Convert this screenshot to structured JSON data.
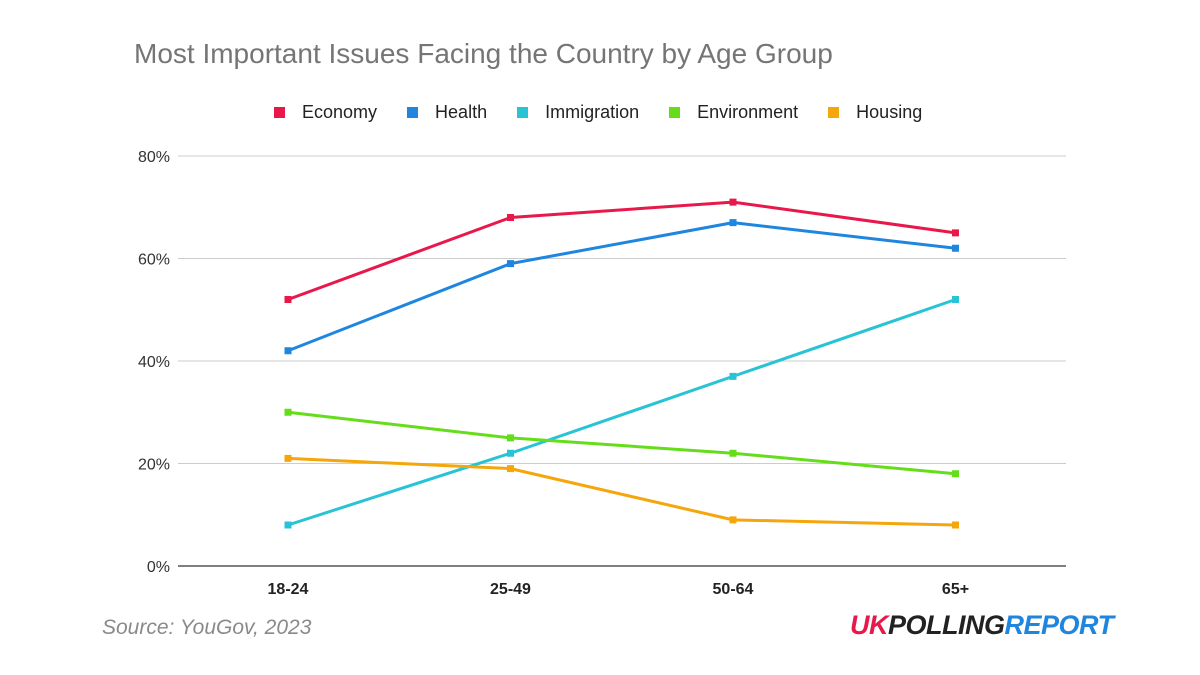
{
  "chart_data": {
    "type": "line",
    "title": "Most Important Issues Facing the Country by Age Group",
    "categories": [
      "18-24",
      "25-49",
      "50-64",
      "65+"
    ],
    "ylim": [
      0,
      80
    ],
    "yticks": [
      0,
      20,
      40,
      60,
      80
    ],
    "ytick_labels": [
      "0%",
      "20%",
      "40%",
      "60%",
      "80%"
    ],
    "grid": true,
    "legend_position": "top",
    "series": [
      {
        "name": "Economy",
        "color": "#e8194a",
        "values": [
          52,
          68,
          71,
          65
        ]
      },
      {
        "name": "Health",
        "color": "#1f86e0",
        "values": [
          42,
          59,
          67,
          62
        ]
      },
      {
        "name": "Immigration",
        "color": "#28c3d4",
        "values": [
          8,
          22,
          37,
          52
        ]
      },
      {
        "name": "Environment",
        "color": "#66dd1a",
        "values": [
          30,
          25,
          22,
          18
        ]
      },
      {
        "name": "Housing",
        "color": "#f5a60a",
        "values": [
          21,
          19,
          9,
          8
        ]
      }
    ]
  },
  "source": "Source: YouGov, 2023",
  "brand": {
    "part1": "UK",
    "part1_color": "#e8194a",
    "part2": "POLLING",
    "part2_color": "#222222",
    "part3": "REPORT",
    "part3_color": "#1f86e0"
  }
}
